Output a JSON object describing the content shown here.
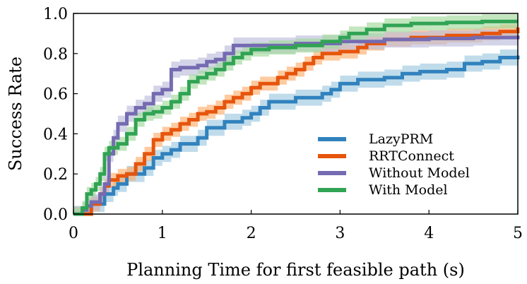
{
  "chart_data": {
    "type": "line",
    "title": "",
    "xlabel": "Planning Time for first feasible path (s)",
    "ylabel": "Success Rate",
    "xlim": [
      0,
      5
    ],
    "ylim": [
      0,
      1.0
    ],
    "xticks": [
      "0",
      "1",
      "2",
      "3",
      "4",
      "5"
    ],
    "yticks": [
      "0.0",
      "0.2",
      "0.4",
      "0.6",
      "0.8",
      "1.0"
    ],
    "legend_position": "lower-right",
    "series": [
      {
        "name": "LazyPRM",
        "color": "#3182bd",
        "band_color": "#9ecae1",
        "band_halfwidth": 0.04,
        "points": [
          [
            0,
            0
          ],
          [
            0.1,
            0
          ],
          [
            0.2,
            0.05
          ],
          [
            0.35,
            0.1
          ],
          [
            0.45,
            0.13
          ],
          [
            0.5,
            0.15
          ],
          [
            0.6,
            0.2
          ],
          [
            0.8,
            0.23
          ],
          [
            0.9,
            0.28
          ],
          [
            1.0,
            0.3
          ],
          [
            1.1,
            0.32
          ],
          [
            1.2,
            0.35
          ],
          [
            1.4,
            0.38
          ],
          [
            1.5,
            0.43
          ],
          [
            1.7,
            0.46
          ],
          [
            1.9,
            0.48
          ],
          [
            2.0,
            0.5
          ],
          [
            2.1,
            0.53
          ],
          [
            2.2,
            0.56
          ],
          [
            2.5,
            0.58
          ],
          [
            2.8,
            0.6
          ],
          [
            2.9,
            0.62
          ],
          [
            3.0,
            0.65
          ],
          [
            3.2,
            0.67
          ],
          [
            3.5,
            0.68
          ],
          [
            3.7,
            0.7
          ],
          [
            3.9,
            0.71
          ],
          [
            4.2,
            0.72
          ],
          [
            4.4,
            0.75
          ],
          [
            4.6,
            0.76
          ],
          [
            4.8,
            0.78
          ],
          [
            5.0,
            0.79
          ]
        ]
      },
      {
        "name": "RRTConnect",
        "color": "#e6550d",
        "band_color": "#fdae6b",
        "band_halfwidth": 0.035,
        "points": [
          [
            0,
            0
          ],
          [
            0.1,
            0
          ],
          [
            0.2,
            0.05
          ],
          [
            0.3,
            0.1
          ],
          [
            0.35,
            0.14
          ],
          [
            0.4,
            0.17
          ],
          [
            0.5,
            0.19
          ],
          [
            0.6,
            0.2
          ],
          [
            0.7,
            0.25
          ],
          [
            0.8,
            0.3
          ],
          [
            0.9,
            0.37
          ],
          [
            1.0,
            0.4
          ],
          [
            1.1,
            0.42
          ],
          [
            1.2,
            0.45
          ],
          [
            1.3,
            0.47
          ],
          [
            1.4,
            0.5
          ],
          [
            1.5,
            0.51
          ],
          [
            1.6,
            0.53
          ],
          [
            1.7,
            0.56
          ],
          [
            1.8,
            0.58
          ],
          [
            1.9,
            0.6
          ],
          [
            2.0,
            0.63
          ],
          [
            2.1,
            0.65
          ],
          [
            2.3,
            0.68
          ],
          [
            2.4,
            0.7
          ],
          [
            2.5,
            0.72
          ],
          [
            2.6,
            0.75
          ],
          [
            2.7,
            0.78
          ],
          [
            2.8,
            0.8
          ],
          [
            3.0,
            0.81
          ],
          [
            3.2,
            0.83
          ],
          [
            3.3,
            0.85
          ],
          [
            3.5,
            0.87
          ],
          [
            3.8,
            0.88
          ],
          [
            4.2,
            0.89
          ],
          [
            4.6,
            0.9
          ],
          [
            4.8,
            0.91
          ],
          [
            5.0,
            0.93
          ]
        ]
      },
      {
        "name": "Without Model",
        "color": "#756bb1",
        "band_color": "#bcbddc",
        "band_halfwidth": 0.04,
        "points": [
          [
            0,
            0
          ],
          [
            0.1,
            0.02
          ],
          [
            0.15,
            0.04
          ],
          [
            0.2,
            0.06
          ],
          [
            0.3,
            0.1
          ],
          [
            0.35,
            0.15
          ],
          [
            0.4,
            0.3
          ],
          [
            0.45,
            0.38
          ],
          [
            0.5,
            0.45
          ],
          [
            0.6,
            0.5
          ],
          [
            0.7,
            0.53
          ],
          [
            0.8,
            0.55
          ],
          [
            0.9,
            0.6
          ],
          [
            1.0,
            0.62
          ],
          [
            1.1,
            0.72
          ],
          [
            1.2,
            0.73
          ],
          [
            1.3,
            0.73
          ],
          [
            1.4,
            0.74
          ],
          [
            1.5,
            0.76
          ],
          [
            1.6,
            0.77
          ],
          [
            1.7,
            0.8
          ],
          [
            1.8,
            0.84
          ],
          [
            2.0,
            0.84
          ],
          [
            2.5,
            0.85
          ],
          [
            3.0,
            0.86
          ],
          [
            3.5,
            0.87
          ],
          [
            4.0,
            0.875
          ],
          [
            4.5,
            0.88
          ],
          [
            5.0,
            0.89
          ]
        ]
      },
      {
        "name": "With Model",
        "color": "#31a354",
        "band_color": "#a1d99b",
        "band_halfwidth": 0.035,
        "points": [
          [
            0,
            0
          ],
          [
            0.1,
            0.03
          ],
          [
            0.15,
            0.1
          ],
          [
            0.2,
            0.12
          ],
          [
            0.25,
            0.15
          ],
          [
            0.3,
            0.2
          ],
          [
            0.35,
            0.3
          ],
          [
            0.4,
            0.33
          ],
          [
            0.5,
            0.35
          ],
          [
            0.6,
            0.4
          ],
          [
            0.7,
            0.47
          ],
          [
            0.8,
            0.5
          ],
          [
            0.9,
            0.51
          ],
          [
            1.0,
            0.53
          ],
          [
            1.1,
            0.56
          ],
          [
            1.2,
            0.6
          ],
          [
            1.3,
            0.66
          ],
          [
            1.4,
            0.68
          ],
          [
            1.5,
            0.7
          ],
          [
            1.6,
            0.72
          ],
          [
            1.7,
            0.75
          ],
          [
            1.8,
            0.78
          ],
          [
            1.9,
            0.8
          ],
          [
            2.0,
            0.82
          ],
          [
            2.2,
            0.83
          ],
          [
            2.5,
            0.84
          ],
          [
            2.8,
            0.86
          ],
          [
            3.0,
            0.88
          ],
          [
            3.1,
            0.9
          ],
          [
            3.3,
            0.92
          ],
          [
            3.5,
            0.94
          ],
          [
            3.8,
            0.95
          ],
          [
            4.2,
            0.955
          ],
          [
            4.6,
            0.96
          ],
          [
            5.0,
            0.96
          ]
        ]
      }
    ]
  }
}
